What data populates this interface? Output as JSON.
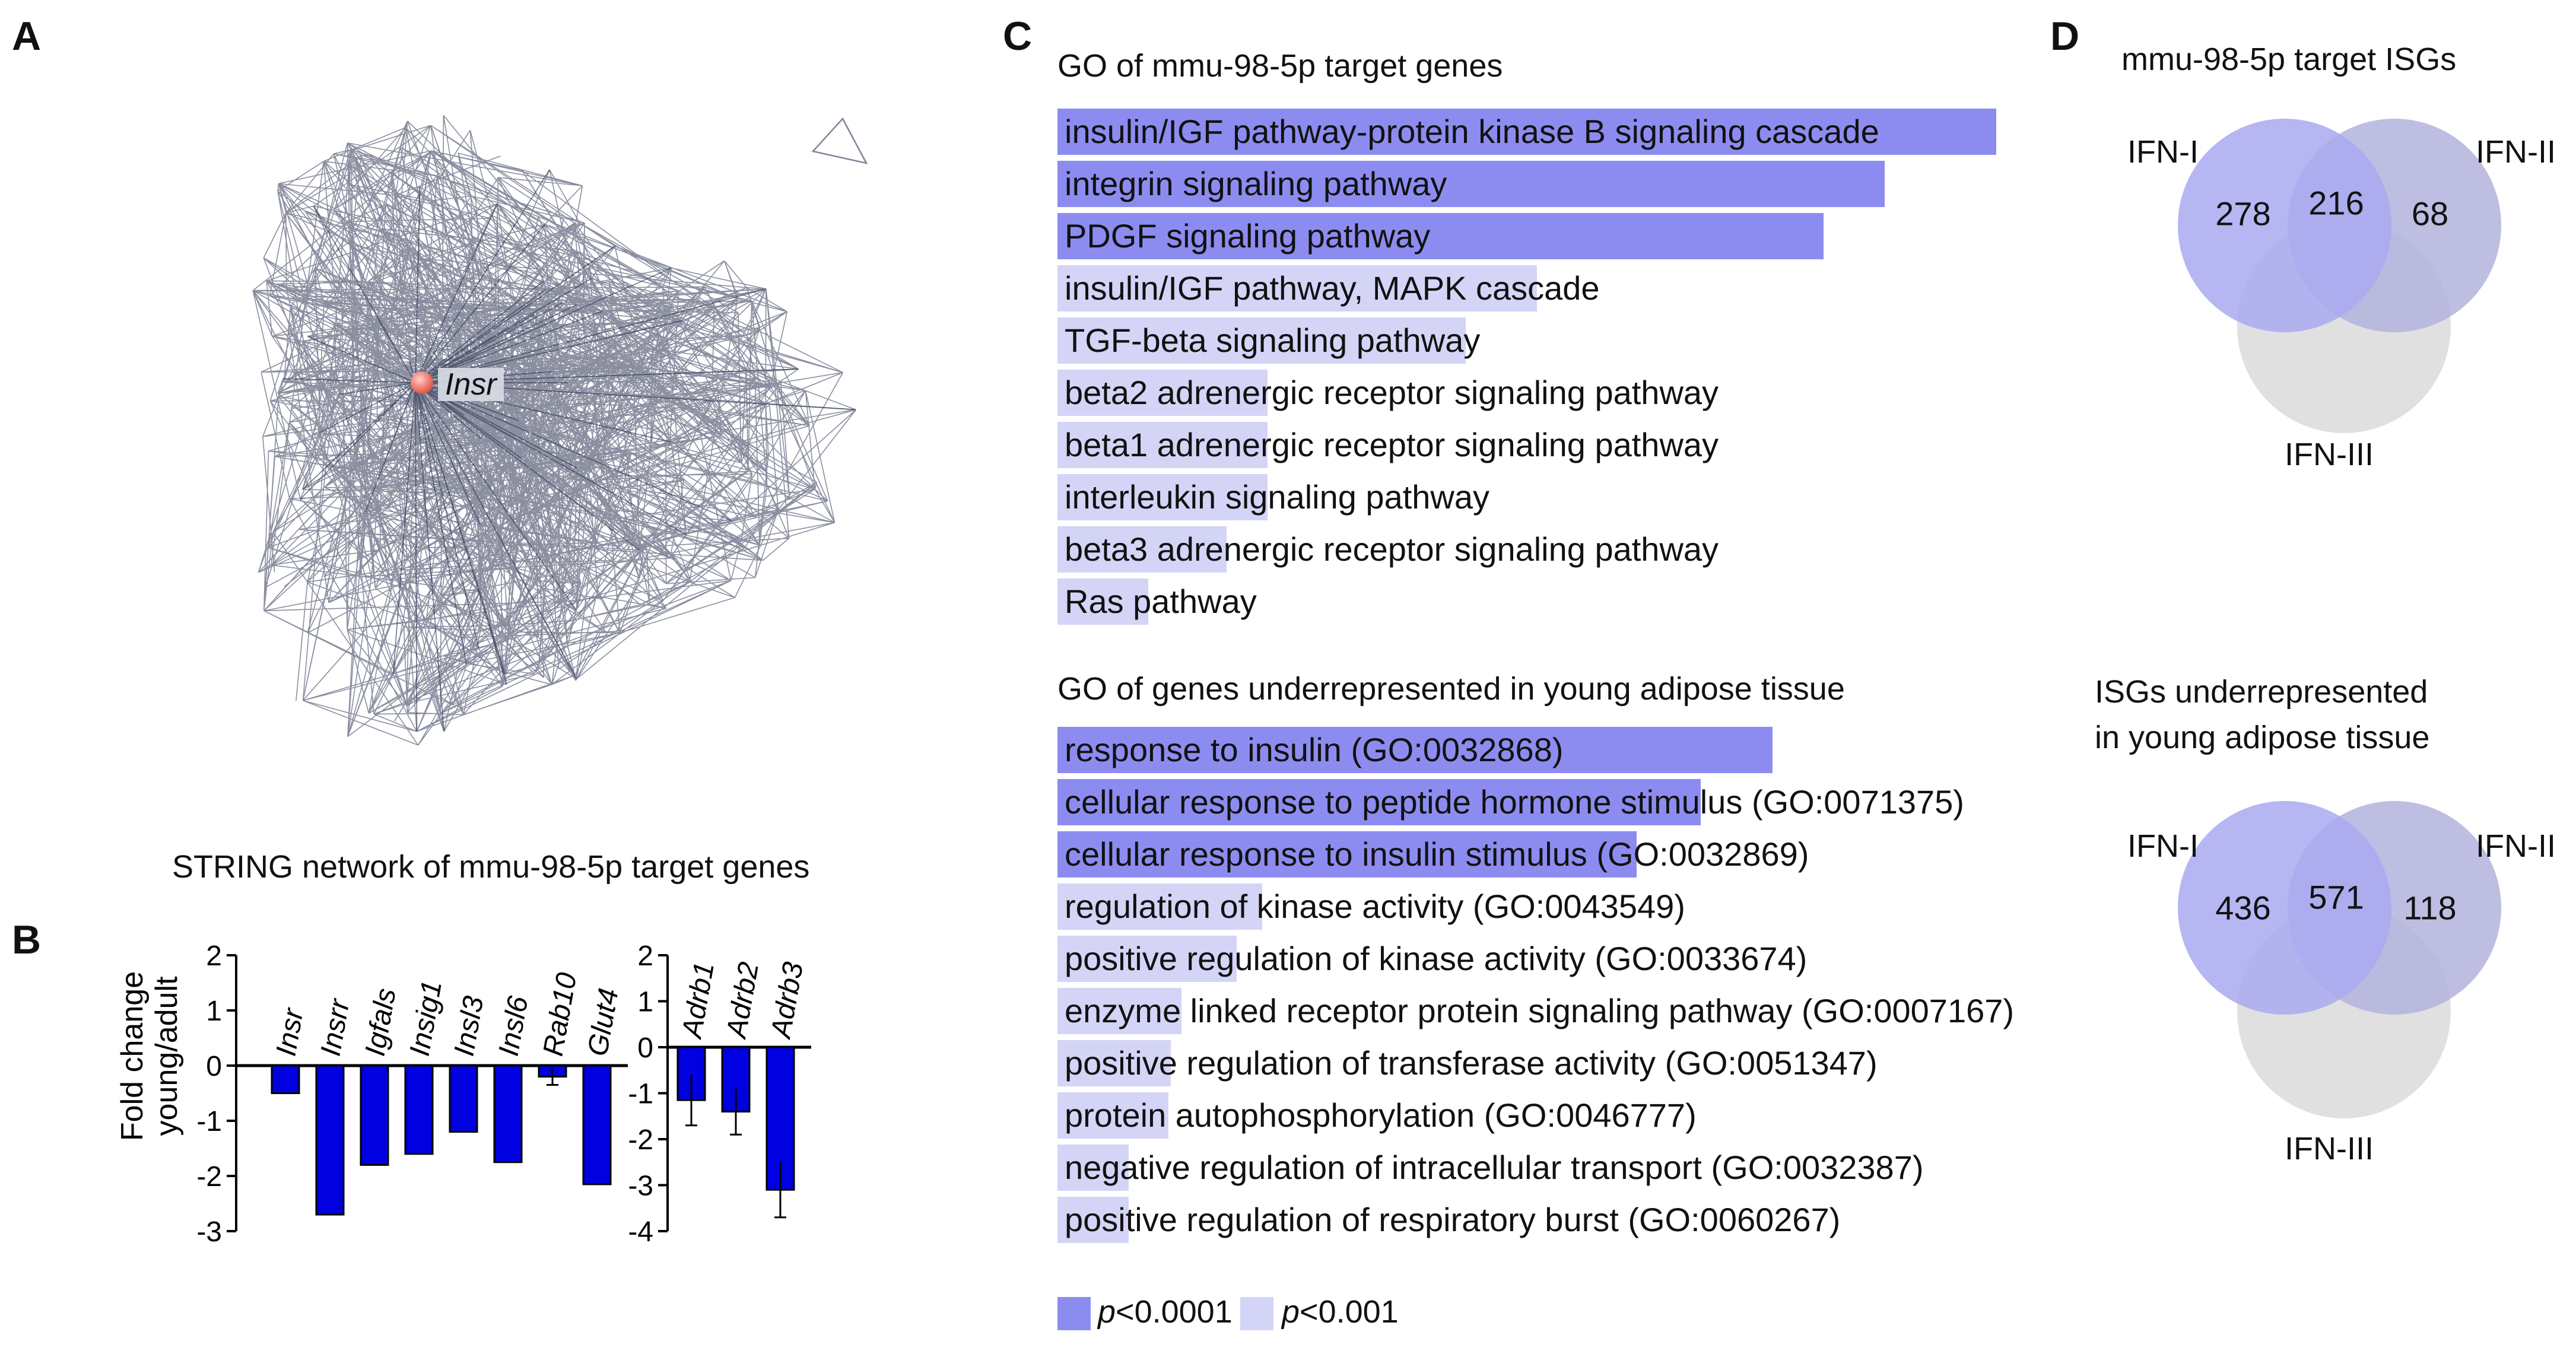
{
  "panels": {
    "a": "A",
    "b": "B",
    "c": "C",
    "d": "D"
  },
  "network": {
    "node_label": "Insr",
    "caption": "STRING network of mmu-98-5p target genes"
  },
  "colors": {
    "strong": "#8c8cf0",
    "weak": "#d4d4f7",
    "bar": "#0000e0",
    "network": "#2a3250",
    "ifn1": "#a9a9f1",
    "ifn2": "#b3b3dd",
    "ifn3": "#dedede"
  },
  "chart_data": [
    {
      "type": "bar",
      "title": "",
      "ylabel": "Fold change young/adult",
      "ylabel_lines": [
        "Fold change",
        "young/adult"
      ],
      "ylim": [
        -3,
        2
      ],
      "yticks": [
        2,
        1,
        0,
        -1,
        -2,
        -3
      ],
      "categories": [
        "Insr",
        "Insrr",
        "Igfals",
        "Insig1",
        "Insl3",
        "Insl6",
        "Rab10",
        "Glut4"
      ],
      "values": [
        -0.5,
        -2.7,
        -1.8,
        -1.6,
        -1.2,
        -1.75,
        -0.2,
        -2.15
      ],
      "errors": [
        0.0,
        0.0,
        0.0,
        0.0,
        0.0,
        0.0,
        0.15,
        0.0
      ]
    },
    {
      "type": "bar",
      "title": "",
      "ylim": [
        -4,
        2
      ],
      "yticks": [
        2,
        1,
        0,
        -1,
        -2,
        -3,
        -4
      ],
      "categories": [
        "Adrb1",
        "Adrb2",
        "Adrb3"
      ],
      "values": [
        -1.15,
        -1.4,
        -3.1
      ],
      "errors": [
        0.55,
        0.5,
        0.6
      ]
    }
  ],
  "go_target": {
    "title": "GO of mmu-98-5p target genes",
    "terms": [
      {
        "label": "insulin/IGF pathway-protein kinase B signaling cascade",
        "width_frac": 1.0,
        "level": "strong"
      },
      {
        "label": "integrin signaling pathway",
        "width_frac": 0.881,
        "level": "strong"
      },
      {
        "label": "PDGF signaling pathway",
        "width_frac": 0.816,
        "level": "strong"
      },
      {
        "label": "insulin/IGF pathway, MAPK cascade",
        "width_frac": 0.511,
        "level": "weak"
      },
      {
        "label": "TGF-beta signaling pathway",
        "width_frac": 0.435,
        "level": "weak"
      },
      {
        "label": "beta2 adrenergic receptor signaling pathway",
        "width_frac": 0.224,
        "level": "weak"
      },
      {
        "label": "beta1 adrenergic receptor signaling pathway",
        "width_frac": 0.224,
        "level": "weak"
      },
      {
        "label": "interleukin signaling pathway",
        "width_frac": 0.224,
        "level": "weak"
      },
      {
        "label": "beta3 adrenergic receptor signaling pathway",
        "width_frac": 0.18,
        "level": "weak"
      },
      {
        "label": "Ras pathway",
        "width_frac": 0.097,
        "level": "weak"
      }
    ]
  },
  "go_young": {
    "title": "GO of genes underrepresented in young adipose tissue",
    "terms": [
      {
        "label": "response to insulin (GO:0032868)",
        "width_frac": 0.762,
        "level": "strong"
      },
      {
        "label": "cellular response to peptide hormone stimulus (GO:0071375)",
        "width_frac": 0.685,
        "level": "strong"
      },
      {
        "label": "cellular response to insulin stimulus (GO:0032869)",
        "width_frac": 0.617,
        "level": "strong"
      },
      {
        "label": "regulation of kinase activity (GO:0043549)",
        "width_frac": 0.218,
        "level": "weak"
      },
      {
        "label": "positive regulation of kinase activity (GO:0033674)",
        "width_frac": 0.191,
        "level": "weak"
      },
      {
        "label": "enzyme linked receptor protein signaling pathway (GO:0007167)",
        "width_frac": 0.132,
        "level": "weak"
      },
      {
        "label": "positive regulation of transferase activity (GO:0051347)",
        "width_frac": 0.121,
        "level": "weak"
      },
      {
        "label": "protein autophosphorylation (GO:0046777)",
        "width_frac": 0.118,
        "level": "weak"
      },
      {
        "label": "negative regulation of intracellular transport (GO:0032387)",
        "width_frac": 0.076,
        "level": "weak"
      },
      {
        "label": "positive regulation of respiratory burst (GO:0060267)",
        "width_frac": 0.076,
        "level": "weak"
      }
    ]
  },
  "legend": {
    "strong_p": "p",
    "strong_rest": "<0.0001",
    "weak_p": "p",
    "weak_rest": "<0.001"
  },
  "venn_top": {
    "title": "mmu-98-5p target ISGs",
    "ifn1": "IFN-I",
    "ifn2": "IFN-II",
    "ifn3": "IFN-III",
    "only1": "278",
    "overlap": "216",
    "only2": "68"
  },
  "venn_bottom": {
    "title_line1": "ISGs underrepresented",
    "title_line2": "in young adipose tissue",
    "ifn1": "IFN-I",
    "ifn2": "IFN-II",
    "ifn3": "IFN-III",
    "only1": "436",
    "overlap": "571",
    "only2": "118"
  }
}
